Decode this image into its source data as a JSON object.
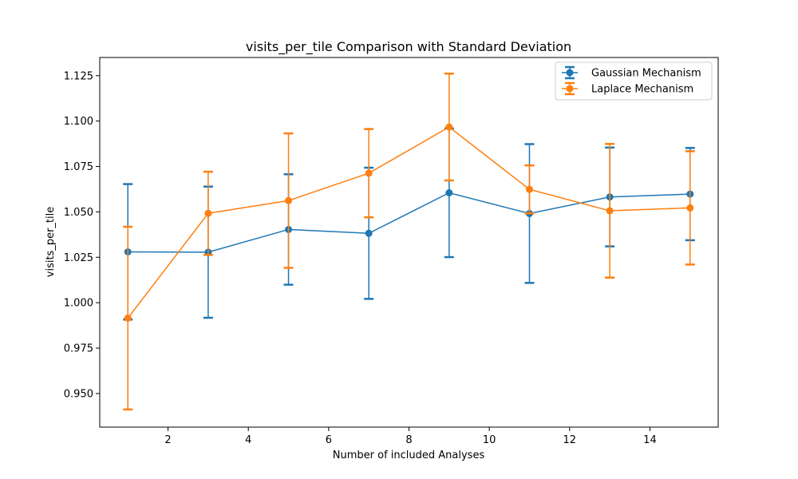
{
  "chart_data": {
    "type": "line",
    "title": "visits_per_tile Comparison with Standard Deviation",
    "xlabel": "Number of included Analyses",
    "ylabel": "visits_per_tile",
    "xlim": [
      0.3,
      15.7
    ],
    "ylim": [
      0.9315,
      1.135
    ],
    "x_ticks": [
      "2",
      "4",
      "6",
      "8",
      "10",
      "12",
      "14"
    ],
    "y_ticks": [
      "0.950",
      "0.975",
      "1.000",
      "1.025",
      "1.050",
      "1.075",
      "1.100",
      "1.125"
    ],
    "grid": false,
    "legend_position": "top-right",
    "x": [
      1,
      3,
      5,
      7,
      9,
      11,
      13,
      15
    ],
    "series": [
      {
        "name": "Gaussian Mechanism",
        "color": "#1f77b4",
        "values": [
          1.028,
          1.0278,
          1.0403,
          1.0382,
          1.0605,
          1.0491,
          1.0582,
          1.0598
        ],
        "error": [
          0.0373,
          0.0361,
          0.0304,
          0.0361,
          0.0354,
          0.0382,
          0.0272,
          0.0254
        ]
      },
      {
        "name": "Laplace Mechanism",
        "color": "#ff7f0e",
        "values": [
          0.9915,
          1.0492,
          1.0562,
          1.0713,
          1.0967,
          1.0624,
          1.0506,
          1.0522
        ],
        "error": [
          0.0503,
          0.0229,
          0.037,
          0.0243,
          0.0294,
          0.0132,
          0.0368,
          0.0312
        ]
      }
    ]
  }
}
